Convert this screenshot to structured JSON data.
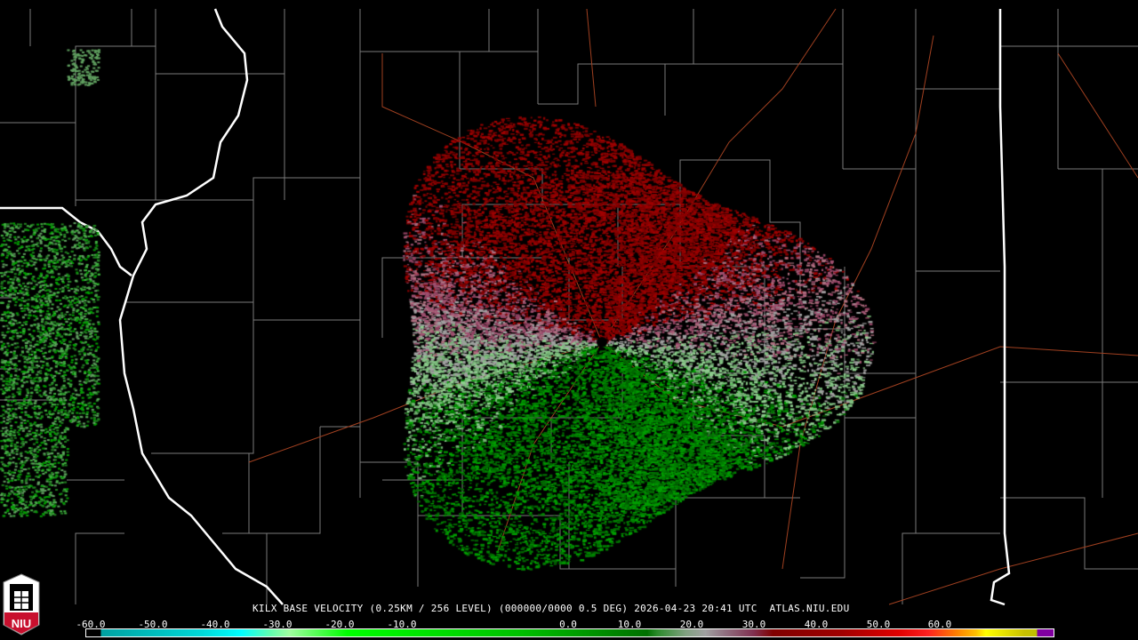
{
  "product": {
    "title": "KILX BASE VELOCITY (0.25KM / 256 LEVEL) (000000/0000 0.5 DEG) 2026-04-23 20:41 UTC  ATLAS.NIU.EDU",
    "station": "KILX",
    "timestamp": "2026-04-23 20:41 UTC"
  },
  "logo": {
    "text": "NIU"
  },
  "legend": {
    "ticks": [
      "-60.0",
      "-50.0",
      "-40.0",
      "-30.0",
      "-20.0",
      "-10.0",
      "0.0",
      "10.0",
      "20.0",
      "30.0",
      "40.0",
      "50.0",
      "60.0"
    ],
    "colors": {
      "inbound": "#00a000",
      "outbound": "#a00000",
      "neutral": "#a0a0a0",
      "range_folded": "#8000a0"
    }
  },
  "map_colors": {
    "state_border": "#ffffff",
    "county_border": "#808080",
    "highway": "#a04020",
    "background": "#000000"
  }
}
